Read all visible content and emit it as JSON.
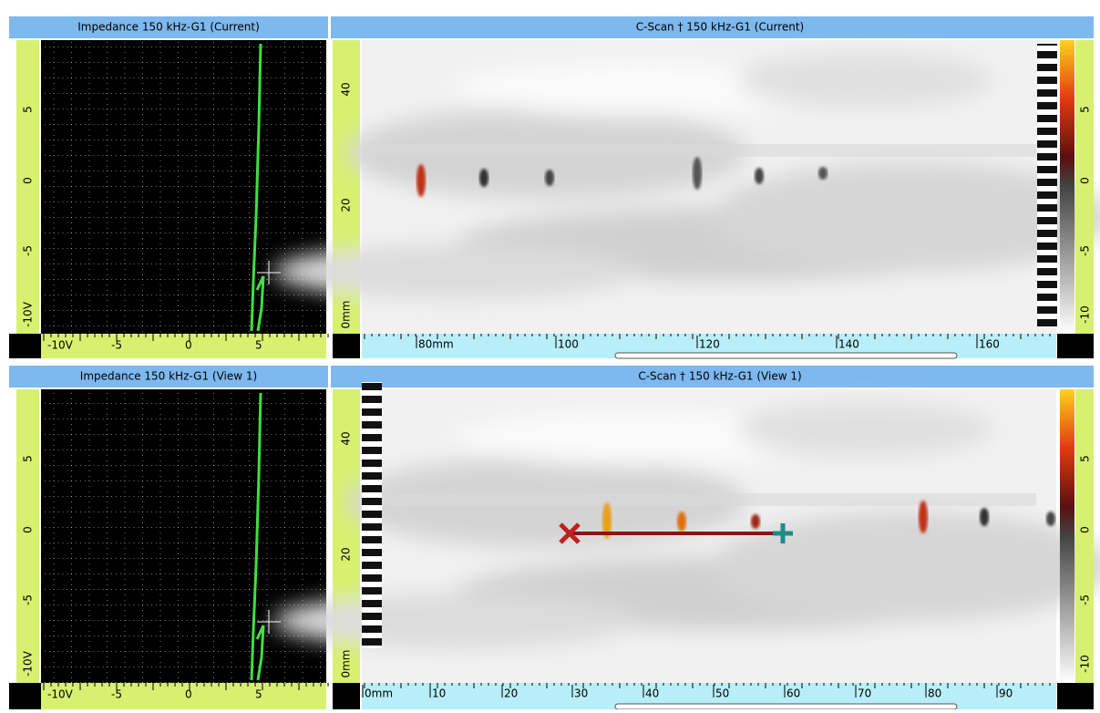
{
  "panels": [
    {
      "title": "Impedance 150 kHz-G1 (Current)",
      "y_labels": [
        "5",
        "0",
        "-5",
        "-10V"
      ],
      "x_labels": [
        "-10V",
        "-5",
        "0",
        "5"
      ]
    },
    {
      "title": "C-Scan † 150 kHz-G1 (Current)",
      "y_labels": [
        "40",
        "20",
        "0mm"
      ],
      "x_labels": [
        "80mm",
        "100",
        "120",
        "140",
        "160"
      ],
      "color_labels": [
        "5",
        "0",
        "-5",
        "-10"
      ]
    },
    {
      "title": "Impedance 150 kHz-G1 (View 1)",
      "y_labels": [
        "5",
        "0",
        "-5",
        "-10V"
      ],
      "x_labels": [
        "-10V",
        "-5",
        "0",
        "5"
      ]
    },
    {
      "title": "C-Scan † 150 kHz-G1 (View 1)",
      "y_labels": [
        "40",
        "20",
        "0mm"
      ],
      "x_labels": [
        "0mm",
        "10",
        "20",
        "30",
        "40",
        "50",
        "60",
        "70",
        "80",
        "90"
      ],
      "color_labels": [
        "5",
        "0",
        "-5",
        "-10"
      ]
    }
  ]
}
